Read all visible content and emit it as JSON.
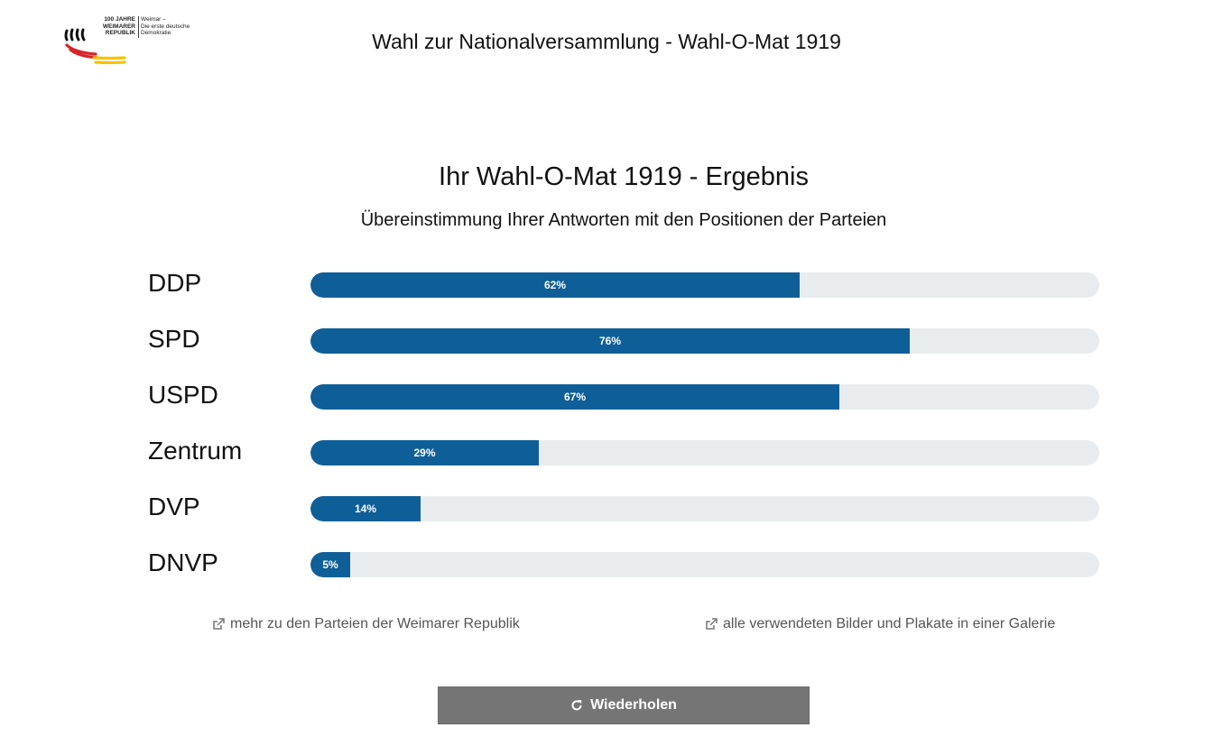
{
  "logo": {
    "line1": "100 JAHRE",
    "line2": "WEIMARER",
    "line3": "REPUBLIK",
    "tag1": "Weimar –",
    "tag2": "Die erste deutsche",
    "tag3": "Demokratie",
    "colors": [
      "#111111",
      "#d9232a",
      "#f5c400"
    ]
  },
  "header": {
    "title": "Wahl zur Nationalversammlung - Wahl-O-Mat 1919"
  },
  "result": {
    "heading": "Ihr Wahl-O-Mat 1919 - Ergebnis",
    "subheading": "Übereinstimmung Ihrer Antworten mit den Positionen der Parteien",
    "accent_color": "#0e5f98",
    "track_color": "#e9ecef",
    "parties": [
      {
        "name": "DDP",
        "percent": 62,
        "label": "62%"
      },
      {
        "name": "SPD",
        "percent": 76,
        "label": "76%"
      },
      {
        "name": "USPD",
        "percent": 67,
        "label": "67%"
      },
      {
        "name": "Zentrum",
        "percent": 29,
        "label": "29%"
      },
      {
        "name": "DVP",
        "percent": 14,
        "label": "14%"
      },
      {
        "name": "DNVP",
        "percent": 5,
        "label": "5%"
      }
    ]
  },
  "links": {
    "parties": "mehr zu den Parteien der Weimarer Republik",
    "gallery": "alle verwendeten Bilder und Plakate in einer Galerie",
    "icon": "external-link-icon"
  },
  "actions": {
    "repeat_label": "Wiederholen",
    "repeat_icon": "refresh-icon",
    "button_color": "#757575"
  }
}
